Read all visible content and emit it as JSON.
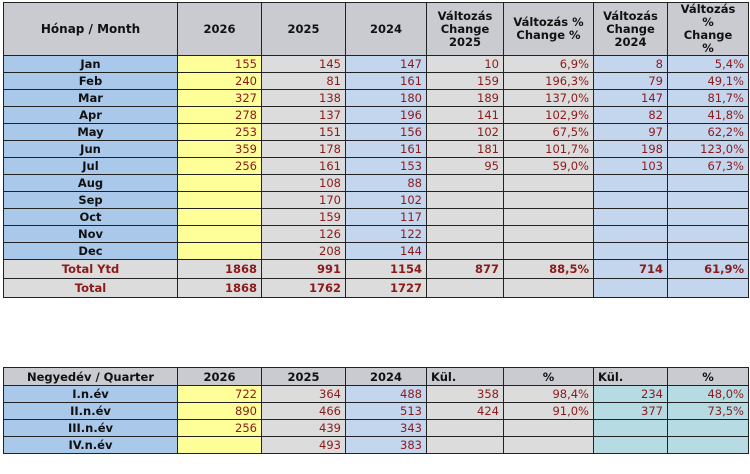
{
  "main_table": {
    "headers": {
      "month": "Hónap / Month",
      "y2026": "2026",
      "y2025": "2025",
      "y2024": "2024",
      "chg2025_line1": "Változás",
      "chg2025_line2": "Change",
      "chg2025_line3": "2025",
      "chgpct2025_line1": "Változás %",
      "chgpct2025_line2": "Change %",
      "chg2024_line1": "Változás",
      "chg2024_line2": "Change",
      "chg2024_line3": "2024",
      "chgpct2024_line1": "Változás",
      "chgpct2024_line2": "%",
      "chgpct2024_line3": "Change",
      "chgpct2024_line4": "%"
    },
    "rows": [
      {
        "month": "Jan",
        "y2026": "155",
        "y2025": "145",
        "y2024": "147",
        "chg2025": "10",
        "chgpct2025": "6,9%",
        "chg2024": "8",
        "chgpct2024": "5,4%"
      },
      {
        "month": "Feb",
        "y2026": "240",
        "y2025": "81",
        "y2024": "161",
        "chg2025": "159",
        "chgpct2025": "196,3%",
        "chg2024": "79",
        "chgpct2024": "49,1%"
      },
      {
        "month": "Mar",
        "y2026": "327",
        "y2025": "138",
        "y2024": "180",
        "chg2025": "189",
        "chgpct2025": "137,0%",
        "chg2024": "147",
        "chgpct2024": "81,7%"
      },
      {
        "month": "Apr",
        "y2026": "278",
        "y2025": "137",
        "y2024": "196",
        "chg2025": "141",
        "chgpct2025": "102,9%",
        "chg2024": "82",
        "chgpct2024": "41,8%"
      },
      {
        "month": "May",
        "y2026": "253",
        "y2025": "151",
        "y2024": "156",
        "chg2025": "102",
        "chgpct2025": "67,5%",
        "chg2024": "97",
        "chgpct2024": "62,2%"
      },
      {
        "month": "Jun",
        "y2026": "359",
        "y2025": "178",
        "y2024": "161",
        "chg2025": "181",
        "chgpct2025": "101,7%",
        "chg2024": "198",
        "chgpct2024": "123,0%"
      },
      {
        "month": "Jul",
        "y2026": "256",
        "y2025": "161",
        "y2024": "153",
        "chg2025": "95",
        "chgpct2025": "59,0%",
        "chg2024": "103",
        "chgpct2024": "67,3%"
      },
      {
        "month": "Aug",
        "y2026": "",
        "y2025": "108",
        "y2024": "88",
        "chg2025": "",
        "chgpct2025": "",
        "chg2024": "",
        "chgpct2024": ""
      },
      {
        "month": "Sep",
        "y2026": "",
        "y2025": "170",
        "y2024": "102",
        "chg2025": "",
        "chgpct2025": "",
        "chg2024": "",
        "chgpct2024": ""
      },
      {
        "month": "Oct",
        "y2026": "",
        "y2025": "159",
        "y2024": "117",
        "chg2025": "",
        "chgpct2025": "",
        "chg2024": "",
        "chgpct2024": ""
      },
      {
        "month": "Nov",
        "y2026": "",
        "y2025": "126",
        "y2024": "122",
        "chg2025": "",
        "chgpct2025": "",
        "chg2024": "",
        "chgpct2024": ""
      },
      {
        "month": "Dec",
        "y2026": "",
        "y2025": "208",
        "y2024": "144",
        "chg2025": "",
        "chgpct2025": "",
        "chg2024": "",
        "chgpct2024": ""
      }
    ],
    "total_ytd": {
      "label": "Total Ytd",
      "y2026": "1868",
      "y2025": "991",
      "y2024": "1154",
      "chg2025": "877",
      "chgpct2025": "88,5%",
      "chg2024": "714",
      "chgpct2024": "61,9%"
    },
    "total": {
      "label": "Total",
      "y2026": "1868",
      "y2025": "1762",
      "y2024": "1727"
    }
  },
  "quarter_table": {
    "headers": {
      "quarter": "Negyedév / Quarter",
      "y2026": "2026",
      "y2025": "2025",
      "y2024": "2024",
      "kul1": "Kül.",
      "pct1": "%",
      "kul2": "Kül.",
      "pct2": "%"
    },
    "rows": [
      {
        "quarter": "I.n.év",
        "y2026": "722",
        "y2025": "364",
        "y2024": "488",
        "kul1": "358",
        "pct1": "98,4%",
        "kul2": "234",
        "pct2": "48,0%"
      },
      {
        "quarter": "II.n.év",
        "y2026": "890",
        "y2025": "466",
        "y2024": "513",
        "kul1": "424",
        "pct1": "91,0%",
        "kul2": "377",
        "pct2": "73,5%"
      },
      {
        "quarter": "III.n.év",
        "y2026": "256",
        "y2025": "439",
        "y2024": "343",
        "kul1": "",
        "pct1": "",
        "kul2": "",
        "pct2": ""
      },
      {
        "quarter": "IV.n.év",
        "y2026": "",
        "y2025": "493",
        "y2024": "383",
        "kul1": "",
        "pct1": "",
        "kul2": "",
        "pct2": ""
      }
    ]
  }
}
